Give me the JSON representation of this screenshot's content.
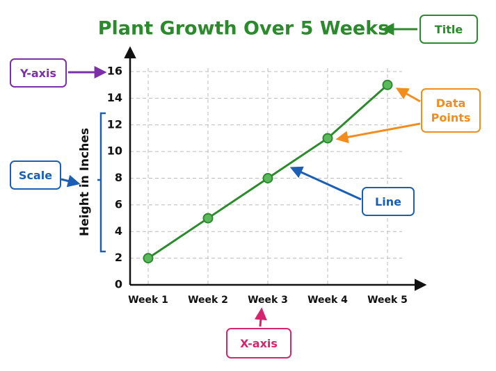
{
  "chart_data": {
    "type": "line",
    "title": "Plant Growth Over 5 Weeks",
    "y_label": "Height in Inches",
    "categories": [
      "Week 1",
      "Week 2",
      "Week 3",
      "Week 4",
      "Week 5"
    ],
    "values": [
      2,
      5,
      8,
      11,
      15
    ],
    "color": "#2b8a2b",
    "marker_color": "#5cb85c",
    "ylim": [
      0,
      16
    ],
    "yticks": [
      0,
      2,
      4,
      6,
      8,
      10,
      12,
      14,
      16
    ],
    "grid": true,
    "annotations": [
      "Title",
      "Y-axis",
      "Scale",
      "Data Points",
      "Line",
      "X-axis"
    ]
  }
}
